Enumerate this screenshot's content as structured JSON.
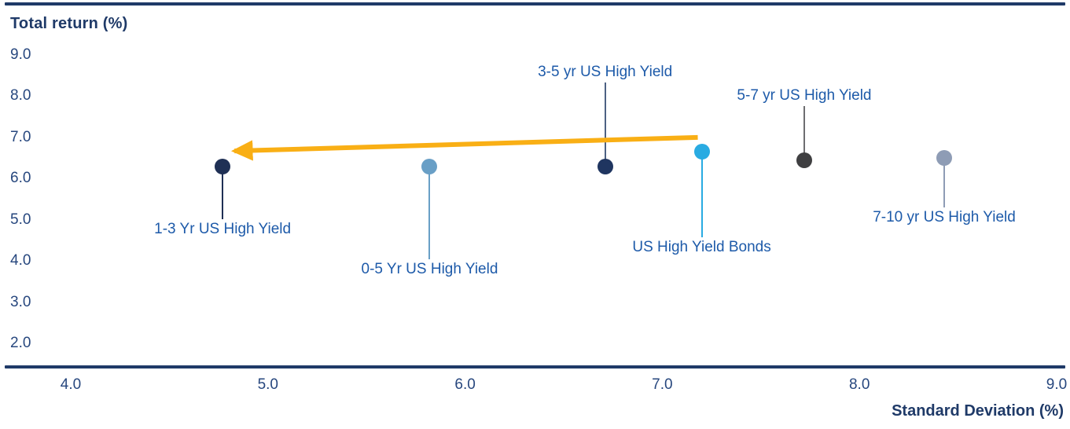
{
  "chart_data": {
    "type": "scatter",
    "title": "Total return (%)",
    "xlabel": "Standard Deviation (%)",
    "ylabel": "Total return (%)",
    "xlim": [
      4.0,
      9.0
    ],
    "ylim": [
      2.0,
      9.0
    ],
    "grid": false,
    "legend": "none (direct point labels with leader lines)",
    "x_ticks": [
      "4.0",
      "5.0",
      "6.0",
      "7.0",
      "8.0",
      "9.0"
    ],
    "y_ticks": [
      "9.0",
      "8.0",
      "7.0",
      "6.0",
      "5.0",
      "4.0",
      "3.0",
      "2.0"
    ],
    "colors": {
      "axis_rule": "#1f3a68",
      "tick_text": "#27477e",
      "point_label_text": "#1d5aa9",
      "arrow": "#f9af15"
    },
    "points": [
      {
        "label": "1-3 Yr US High Yield",
        "x": 4.77,
        "y": 6.3,
        "dot_color": "#1f3055",
        "line_color": "#1f3055",
        "label_offset": 80
      },
      {
        "label": "0-5 Yr US High Yield",
        "x": 5.82,
        "y": 6.3,
        "dot_color": "#699fc6",
        "line_color": "#699fc6",
        "label_offset": 131
      },
      {
        "label": "3-5 yr US High Yield",
        "x": 6.71,
        "y": 6.3,
        "dot_color": "#1f3560",
        "line_color": "#4d6183",
        "label_offset": -120
      },
      {
        "label": "US High Yield Bonds",
        "x": 7.2,
        "y": 6.65,
        "dot_color": "#29abe2",
        "line_color": "#29abe2",
        "label_offset": 122
      },
      {
        "label": "5-7 yr US High Yield",
        "x": 7.72,
        "y": 6.45,
        "dot_color": "#3f3f41",
        "line_color": "#6e6e70",
        "label_offset": -82
      },
      {
        "label": "7-10 yr US High Yield",
        "x": 8.43,
        "y": 6.5,
        "dot_color": "#8e9cb5",
        "line_color": "#8e9cb5",
        "label_offset": 76
      }
    ],
    "arrow": {
      "description": "gold arrow pointing left from US High Yield Bonds toward 1-3 Yr US High Yield",
      "color": "#f9af15",
      "from": {
        "x": 7.18,
        "y": 7.0
      },
      "to": {
        "x": 4.83,
        "y": 6.67
      }
    }
  }
}
